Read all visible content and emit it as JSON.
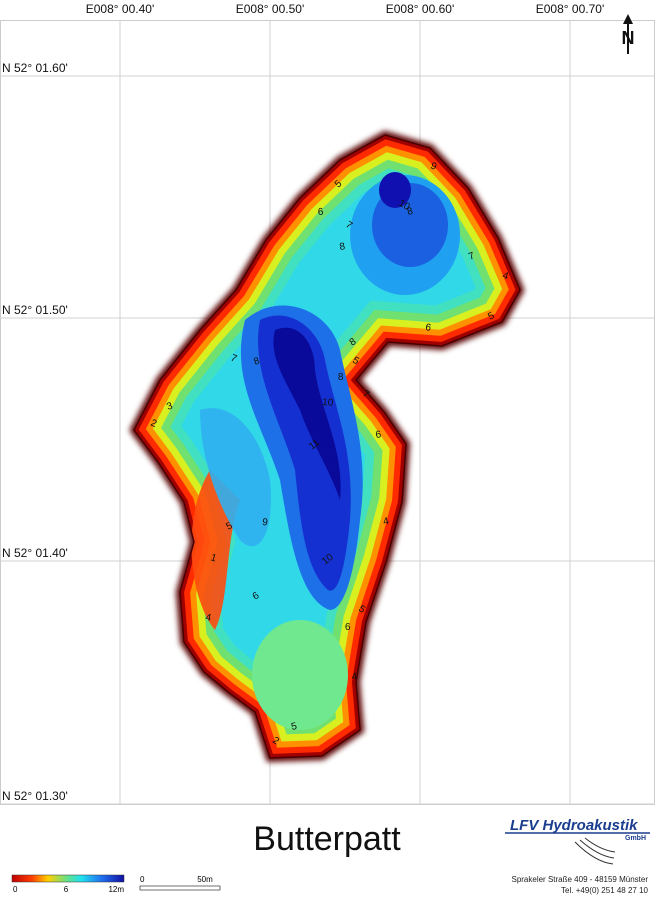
{
  "map": {
    "lon_labels": [
      "E008° 00.40'",
      "E008° 00.50'",
      "E008° 00.60'",
      "E008° 00.70'"
    ],
    "lat_labels": [
      "N 52° 01.60'",
      "N 52° 01.50'",
      "N 52° 01.40'",
      "N 52° 01.30'"
    ],
    "north": "N",
    "title": "Butterpatt",
    "contour_labels": [
      "5",
      "6",
      "7",
      "8",
      "10",
      "8",
      "9",
      "7",
      "4",
      "5",
      "6",
      "8",
      "10",
      "11",
      "8",
      "7",
      "6",
      "5",
      "4",
      "2",
      "3",
      "1",
      "5",
      "4",
      "6",
      "9",
      "10",
      "6",
      "5",
      "4",
      "2",
      "5",
      "7",
      "8"
    ]
  },
  "legend": {
    "depth_labels": [
      "0",
      "6",
      "12m"
    ],
    "scale_labels": [
      "0",
      "50m"
    ]
  },
  "company": {
    "name": "LFV Hydroakustik",
    "suffix": "GmbH",
    "address": "Sprakeler Straße 409 - 48159 Münster",
    "phone": "Tel. +49(0) 251 48 27 10"
  }
}
